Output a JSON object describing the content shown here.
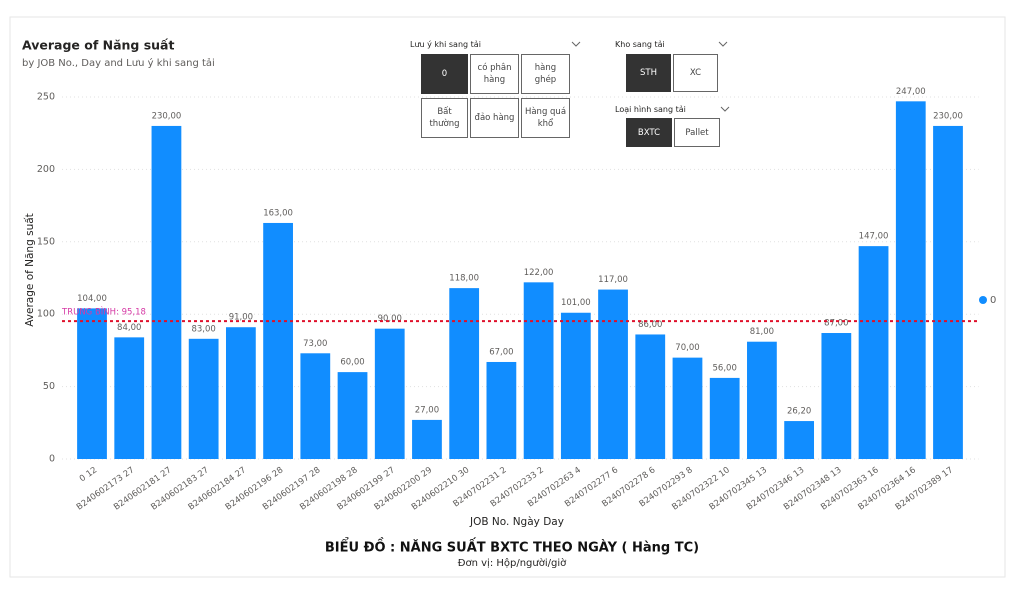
{
  "chart_data": {
    "type": "bar",
    "title": "Average of Năng suất",
    "subtitle": "by JOB No., Day and Lưu ý khi sang tải",
    "y_label": "Average of Năng suất",
    "x_label": "JOB No. Ngày Day",
    "categories": [
      "0 12",
      "B240602173 27",
      "B240602181 27",
      "B240602183 27",
      "B240602184 27",
      "B240602196 28",
      "B240602197 28",
      "B240602198 28",
      "B240602199 27",
      "B240602200 29",
      "B240602210 30",
      "B240702231 2",
      "B240702233 2",
      "B240702263 4",
      "B240702277 6",
      "B240702278 6",
      "B240702293 8",
      "B240702322 10",
      "B240702345 13",
      "B240702346 13",
      "B240702348 13",
      "B240702363 16",
      "B240702364 16",
      "B240702389 17"
    ],
    "series": [
      {
        "name": "0",
        "color": "#118dff",
        "values": [
          104,
          84,
          230,
          83,
          91,
          163,
          73,
          60,
          90,
          27,
          118,
          67,
          122,
          101,
          117,
          86,
          70,
          56,
          81,
          26.2,
          87,
          147,
          247,
          230
        ],
        "value_labels": [
          "104,00",
          "84,00",
          "230,00",
          "83,00",
          "91,00",
          "163,00",
          "73,00",
          "60,00",
          "90,00",
          "27,00",
          "118,00",
          "67,00",
          "122,00",
          "101,00",
          "117,00",
          "86,00",
          "70,00",
          "56,00",
          "81,00",
          "26,20",
          "87,00",
          "147,00",
          "247,00",
          "230,00"
        ]
      }
    ],
    "ylim": [
      0,
      262
    ],
    "yticks": [
      0,
      50,
      100,
      150,
      200,
      250
    ],
    "grid": true,
    "legend": "right",
    "reference_line": {
      "value": 95.18,
      "label": "TRUNG BÌNH: 95,18",
      "color": "#e0102a"
    }
  },
  "caption": {
    "title": "BIỂU ĐỒ : NĂNG SUẤT BXTC THEO NGÀY ( Hàng TC)",
    "unit": "Đơn vị: Hộp/người/giờ"
  },
  "slicers": [
    {
      "title": "Lưu ý khi sang tải",
      "options": [
        {
          "label": "0",
          "selected": true
        },
        {
          "label": "có phân hàng",
          "selected": false
        },
        {
          "label": "hàng ghép",
          "selected": false
        },
        {
          "label": "Bất thường",
          "selected": false
        },
        {
          "label": "đảo hàng",
          "selected": false
        },
        {
          "label": "Hàng quá khổ",
          "selected": false
        }
      ]
    },
    {
      "title": "Kho sang tải",
      "options": [
        {
          "label": "STH",
          "selected": true
        },
        {
          "label": "XC",
          "selected": false
        }
      ]
    },
    {
      "title": "Loại hình sang tải",
      "options": [
        {
          "label": "BXTC",
          "selected": true
        },
        {
          "label": "Pallet",
          "selected": false
        }
      ]
    }
  ]
}
